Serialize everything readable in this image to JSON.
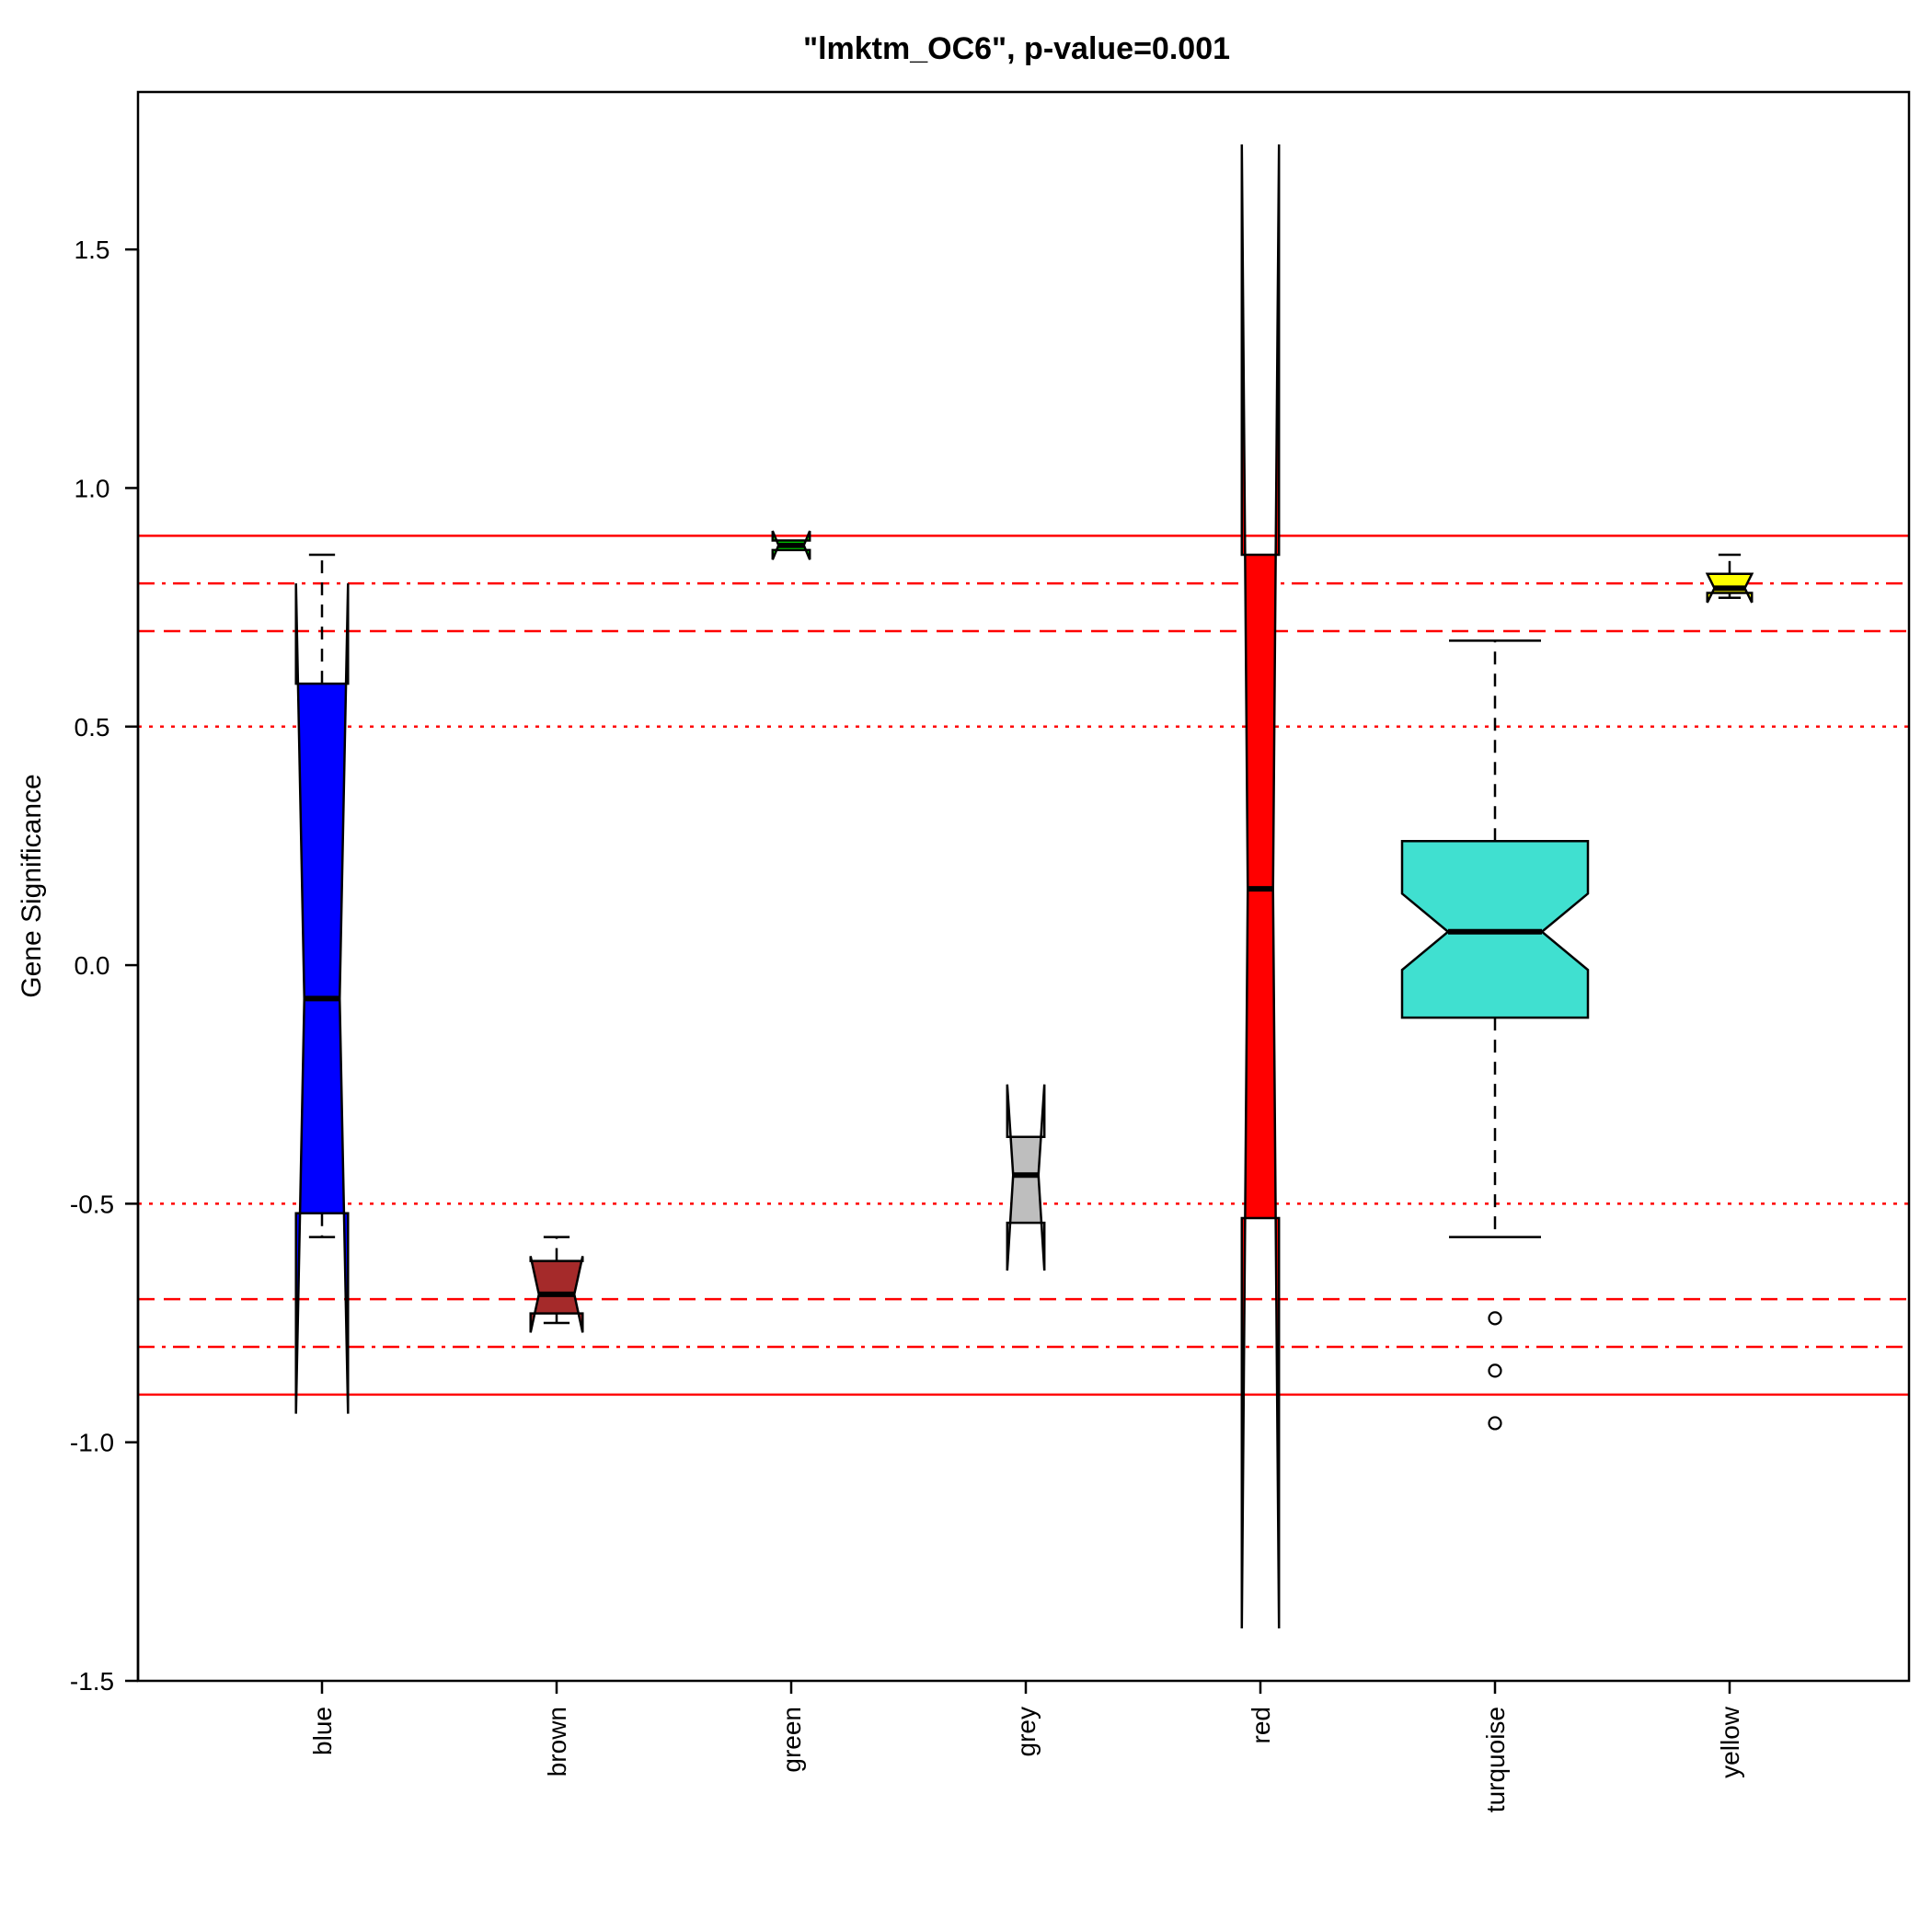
{
  "chart_data": {
    "type": "boxplot",
    "title": "\"lmktm_OC6\", p-value=0.001",
    "xlabel": "",
    "ylabel": "Gene Significance",
    "ylim": [
      -1.5,
      1.83
    ],
    "yticks": [
      -1.5,
      -1.0,
      -0.5,
      0.0,
      0.5,
      1.0,
      1.5
    ],
    "ytick_labels": [
      "-1.5",
      "-1.0",
      "-0.5",
      "0.0",
      "0.5",
      "1.0",
      "1.5"
    ],
    "notched": true,
    "grid": false,
    "categories": [
      "blue",
      "brown",
      "green",
      "grey",
      "red",
      "turquoise",
      "yellow"
    ],
    "boxes": [
      {
        "label": "blue",
        "fill": "#0000ff",
        "whisker_low": -0.57,
        "q1": -0.52,
        "median": -0.07,
        "q3": 0.59,
        "whisker_high": 0.86,
        "notch_low": -0.94,
        "notch_high": 0.8,
        "outliers": []
      },
      {
        "label": "brown",
        "fill": "#a52a2a",
        "whisker_low": -0.75,
        "q1": -0.73,
        "median": -0.69,
        "q3": -0.62,
        "whisker_high": -0.57,
        "notch_low": -0.77,
        "notch_high": -0.61,
        "outliers": []
      },
      {
        "label": "green",
        "fill": "#00ff00",
        "whisker_low": 0.87,
        "q1": 0.87,
        "median": 0.88,
        "q3": 0.89,
        "whisker_high": 0.89,
        "notch_low": 0.85,
        "notch_high": 0.91,
        "outliers": []
      },
      {
        "label": "grey",
        "fill": "#bebebe",
        "whisker_low": -0.54,
        "q1": -0.54,
        "median": -0.44,
        "q3": -0.36,
        "whisker_high": -0.36,
        "notch_low": -0.64,
        "notch_high": -0.25,
        "outliers": []
      },
      {
        "label": "red",
        "fill": "#ff0000",
        "whisker_low": -0.53,
        "q1": -0.53,
        "median": 0.16,
        "q3": 0.86,
        "whisker_high": 0.86,
        "notch_low": -1.39,
        "notch_high": 1.72,
        "outliers": []
      },
      {
        "label": "turquoise",
        "fill": "#40e0d0",
        "whisker_low": -0.57,
        "q1": -0.11,
        "median": 0.07,
        "q3": 0.26,
        "whisker_high": 0.68,
        "notch_low": -0.01,
        "notch_high": 0.15,
        "outliers": [
          -0.74,
          -0.85,
          -0.96
        ]
      },
      {
        "label": "yellow",
        "fill": "#ffff00",
        "whisker_low": 0.77,
        "q1": 0.78,
        "median": 0.79,
        "q3": 0.82,
        "whisker_high": 0.86,
        "notch_low": 0.76,
        "notch_high": 0.82,
        "outliers": []
      }
    ],
    "reference_lines": [
      {
        "y": 0.9,
        "style": "solid",
        "color": "#ff0000"
      },
      {
        "y": -0.9,
        "style": "solid",
        "color": "#ff0000"
      },
      {
        "y": 0.8,
        "style": "dashdot",
        "color": "#ff0000"
      },
      {
        "y": -0.8,
        "style": "dashdot",
        "color": "#ff0000"
      },
      {
        "y": 0.7,
        "style": "dashed",
        "color": "#ff0000"
      },
      {
        "y": -0.7,
        "style": "dashed",
        "color": "#ff0000"
      },
      {
        "y": 0.5,
        "style": "dotted",
        "color": "#ff0000"
      },
      {
        "y": -0.5,
        "style": "dotted",
        "color": "#ff0000"
      }
    ]
  }
}
